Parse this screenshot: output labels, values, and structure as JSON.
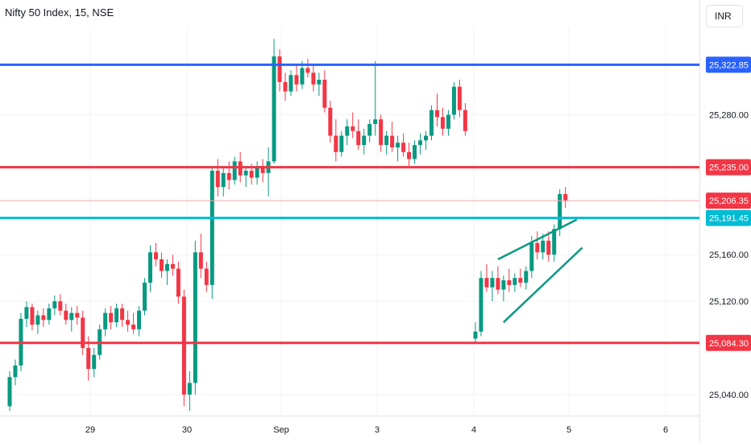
{
  "header": {
    "title": "Nifty 50 Index, 15, NSE",
    "currency": "INR"
  },
  "colors": {
    "up": "#089981",
    "down": "#f23645",
    "resistance_top": "#2962ff",
    "support_red": "#f23645",
    "cyan_line": "#00bcd4",
    "current_price_line": "#f7a9b0",
    "channel": "#089981",
    "grid": "#f0f3fa",
    "axis_text": "#131722"
  },
  "chart_data": {
    "type": "candlestick",
    "title": "Nifty 50 Index, 15, NSE",
    "ylim": [
      25022,
      25348
    ],
    "y_ticks": [
      "25,040.00",
      "25,120.00",
      "25,160.00",
      "25,280.00"
    ],
    "x_ticks": [
      "29",
      "30",
      "Sep",
      "3",
      "4",
      "5",
      "6"
    ],
    "horizontal_levels": [
      {
        "value": 25322.85,
        "label": "25,322.85",
        "color": "#2962ff"
      },
      {
        "value": 25235.0,
        "label": "25,235.00",
        "color": "#f23645"
      },
      {
        "value": 25206.35,
        "label": "25,206.35",
        "color": "#f23645",
        "style": "current"
      },
      {
        "value": 25191.45,
        "label": "25,191.45",
        "color": "#00bcd4"
      },
      {
        "value": 25084.3,
        "label": "25,084.30",
        "color": "#f23645"
      }
    ],
    "candle_ohlc": [
      [
        25030,
        25060,
        25026,
        25055
      ],
      [
        25055,
        25070,
        25048,
        25065
      ],
      [
        25065,
        25110,
        25060,
        25105
      ],
      [
        25105,
        25120,
        25098,
        25115
      ],
      [
        25115,
        25118,
        25095,
        25100
      ],
      [
        25100,
        25112,
        25092,
        25108
      ],
      [
        25108,
        25114,
        25098,
        25104
      ],
      [
        25104,
        25118,
        25100,
        25114
      ],
      [
        25114,
        25125,
        25108,
        25120
      ],
      [
        25120,
        25126,
        25108,
        25112
      ],
      [
        25112,
        25118,
        25100,
        25104
      ],
      [
        25104,
        25115,
        25094,
        25110
      ],
      [
        25110,
        25116,
        25100,
        25106
      ],
      [
        25106,
        25112,
        25074,
        25080
      ],
      [
        25080,
        25090,
        25052,
        25062
      ],
      [
        25062,
        25080,
        25055,
        25074
      ],
      [
        25074,
        25100,
        25070,
        25096
      ],
      [
        25096,
        25114,
        25090,
        25110
      ],
      [
        25110,
        25116,
        25096,
        25102
      ],
      [
        25102,
        25118,
        25098,
        25114
      ],
      [
        25114,
        25118,
        25098,
        25104
      ],
      [
        25104,
        25112,
        25094,
        25100
      ],
      [
        25100,
        25110,
        25092,
        25096
      ],
      [
        25096,
        25116,
        25090,
        25112
      ],
      [
        25112,
        25140,
        25108,
        25136
      ],
      [
        25136,
        25168,
        25128,
        25162
      ],
      [
        25162,
        25170,
        25150,
        25156
      ],
      [
        25156,
        25162,
        25140,
        25146
      ],
      [
        25146,
        25156,
        25134,
        25152
      ],
      [
        25152,
        25160,
        25142,
        25148
      ],
      [
        25148,
        25154,
        25118,
        25124
      ],
      [
        25124,
        25130,
        25030,
        25040
      ],
      [
        25040,
        25060,
        25026,
        25050
      ],
      [
        25050,
        25172,
        25040,
        25162
      ],
      [
        25162,
        25178,
        25140,
        25148
      ],
      [
        25148,
        25154,
        25128,
        25134
      ],
      [
        25134,
        25236,
        25122,
        25232
      ],
      [
        25232,
        25242,
        25210,
        25218
      ],
      [
        25218,
        25236,
        25210,
        25230
      ],
      [
        25230,
        25240,
        25216,
        25224
      ],
      [
        25224,
        25244,
        25220,
        25240
      ],
      [
        25240,
        25248,
        25222,
        25228
      ],
      [
        25228,
        25236,
        25218,
        25232
      ],
      [
        25232,
        25238,
        25220,
        25226
      ],
      [
        25226,
        25240,
        25220,
        25236
      ],
      [
        25236,
        25242,
        25222,
        25230
      ],
      [
        25230,
        25252,
        25210,
        25240
      ],
      [
        25240,
        25345,
        25238,
        25330
      ],
      [
        25330,
        25336,
        25300,
        25308
      ],
      [
        25308,
        25316,
        25292,
        25300
      ],
      [
        25300,
        25318,
        25296,
        25314
      ],
      [
        25314,
        25322,
        25300,
        25306
      ],
      [
        25306,
        25326,
        25302,
        25320
      ],
      [
        25320,
        25328,
        25312,
        25316
      ],
      [
        25316,
        25322,
        25300,
        25306
      ],
      [
        25306,
        25316,
        25296,
        25310
      ],
      [
        25310,
        25318,
        25282,
        25286
      ],
      [
        25286,
        25292,
        25256,
        25262
      ],
      [
        25262,
        25276,
        25240,
        25248
      ],
      [
        25248,
        25266,
        25244,
        25262
      ],
      [
        25262,
        25276,
        25254,
        25270
      ],
      [
        25270,
        25282,
        25260,
        25266
      ],
      [
        25266,
        25276,
        25250,
        25254
      ],
      [
        25254,
        25268,
        25246,
        25262
      ],
      [
        25262,
        25276,
        25256,
        25272
      ],
      [
        25272,
        25326,
        25262,
        25276
      ],
      [
        25276,
        25280,
        25248,
        25254
      ],
      [
        25254,
        25266,
        25246,
        25262
      ],
      [
        25262,
        25274,
        25248,
        25252
      ],
      [
        25252,
        25262,
        25240,
        25256
      ],
      [
        25256,
        25264,
        25244,
        25248
      ],
      [
        25248,
        25256,
        25236,
        25242
      ],
      [
        25242,
        25258,
        25238,
        25254
      ],
      [
        25254,
        25264,
        25246,
        25258
      ],
      [
        25258,
        25266,
        25250,
        25262
      ],
      [
        25262,
        25288,
        25258,
        25284
      ],
      [
        25284,
        25298,
        25270,
        25278
      ],
      [
        25278,
        25286,
        25262,
        25268
      ],
      [
        25268,
        25284,
        25262,
        25280
      ],
      [
        25280,
        25308,
        25276,
        25304
      ],
      [
        25304,
        25310,
        25278,
        25284
      ],
      [
        25284,
        25290,
        25262,
        25266
      ],
      [
        25088,
        25102,
        25084,
        25094
      ],
      [
        25094,
        25146,
        25090,
        25140
      ],
      [
        25140,
        25152,
        25128,
        25132
      ],
      [
        25132,
        25146,
        25120,
        25140
      ],
      [
        25140,
        25150,
        25126,
        25130
      ],
      [
        25130,
        25142,
        25120,
        25138
      ],
      [
        25138,
        25148,
        25128,
        25134
      ],
      [
        25134,
        25144,
        25128,
        25140
      ],
      [
        25140,
        25148,
        25132,
        25136
      ],
      [
        25136,
        25150,
        25130,
        25146
      ],
      [
        25146,
        25176,
        25140,
        25170
      ],
      [
        25170,
        25180,
        25156,
        25162
      ],
      [
        25162,
        25178,
        25156,
        25172
      ],
      [
        25172,
        25180,
        25154,
        25160
      ],
      [
        25160,
        25186,
        25154,
        25182
      ],
      [
        25182,
        25216,
        25176,
        25212
      ],
      [
        25212,
        25218,
        25200,
        25206
      ]
    ],
    "channel_lines": [
      {
        "from": [
          86,
          25156
        ],
        "to": [
          100,
          25190
        ]
      },
      {
        "from": [
          87,
          25102
        ],
        "to": [
          101,
          25166
        ]
      }
    ]
  }
}
